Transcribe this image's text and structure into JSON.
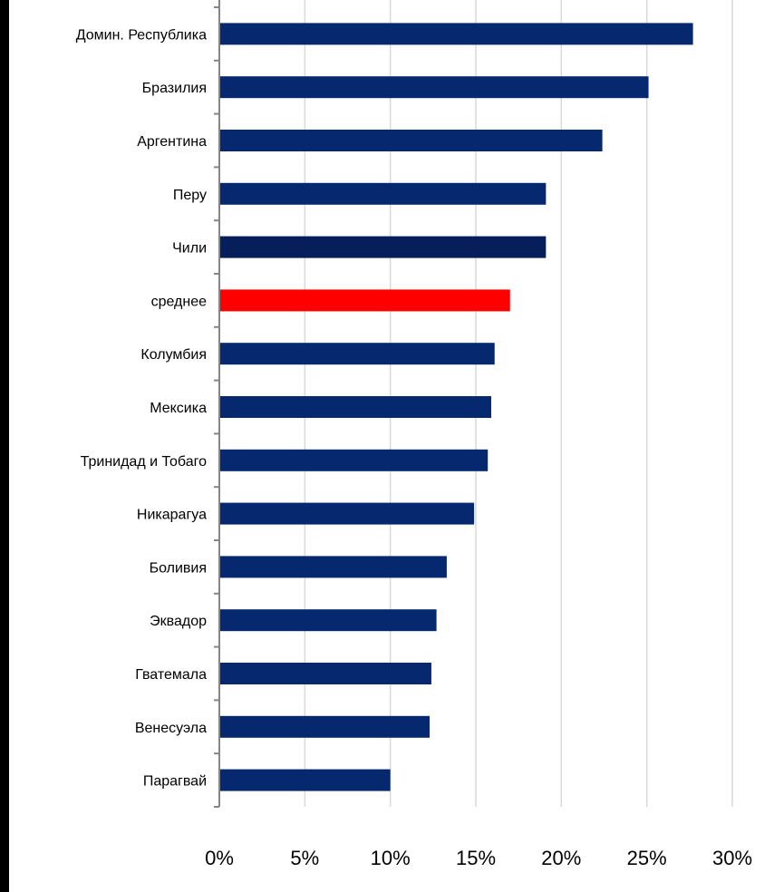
{
  "chart_data": {
    "type": "bar",
    "orientation": "horizontal",
    "categories": [
      "Домин. Республика",
      "Бразилия",
      "Аргентина",
      "Перу",
      "Чили",
      "среднее",
      "Колумбия",
      "Мексика",
      "Тринидад и Тобаго",
      "Никарагуа",
      "Боливия",
      "Эквадор",
      "Гватемала",
      "Венесуэла",
      "Парагвай"
    ],
    "values": [
      27.7,
      25.1,
      22.4,
      19.1,
      19.1,
      17.0,
      16.1,
      15.9,
      15.7,
      14.9,
      13.3,
      12.7,
      12.4,
      12.3,
      10.0
    ],
    "bar_colors": [
      "#05286e",
      "#05286e",
      "#05286e",
      "#05286e",
      "#061f5a",
      "#ff0000",
      "#05286e",
      "#05286e",
      "#05286e",
      "#05286e",
      "#05286e",
      "#05286e",
      "#05286e",
      "#05286e",
      "#05286e"
    ],
    "xlim": [
      0,
      30
    ],
    "xticks": [
      "0%",
      "5%",
      "10%",
      "15%",
      "20%",
      "25%",
      "30%"
    ],
    "grid": true,
    "title": "",
    "xlabel": "",
    "ylabel": ""
  }
}
